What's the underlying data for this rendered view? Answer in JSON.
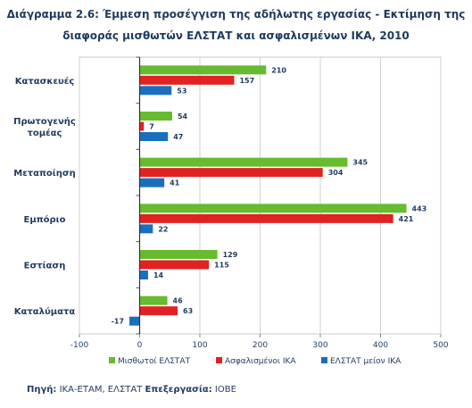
{
  "title_line1": "Διάγραμμα 2.6: Έμμεση προσέγγιση της αδήλωτης εργασίας - Εκτίμηση της",
  "title_line2": "διαφοράς μισθωτών ΕΛΣΤΑΤ και ασφαλισμένων ΙΚΑ, 2010",
  "source_label": "Πηγή:",
  "source_text": " ΙΚΑ-ΕΤΑΜ, ΕΛΣΤΑΤ ",
  "processing_label": "Επεξεργασία:",
  "processing_text": " ΙΟΒΕ",
  "colors": {
    "series1": "#66bb2e",
    "series2": "#e02222",
    "series3": "#1a6fbd",
    "text": "#1f3a5f"
  },
  "chart_data": {
    "type": "bar",
    "orientation": "horizontal",
    "categories": [
      "Κατασκευές",
      "Πρωτογενής τομέας",
      "Μεταποίηση",
      "Εμπόριο",
      "Εστίαση",
      "Καταλύματα"
    ],
    "category_lines": [
      [
        "Κατασκευές"
      ],
      [
        "Πρωτογενής",
        "τομέας"
      ],
      [
        "Μεταποίηση"
      ],
      [
        "Εμπόριο"
      ],
      [
        "Εστίαση"
      ],
      [
        "Καταλύματα"
      ]
    ],
    "series": [
      {
        "name": "Μισθωτοί ΕΛΣΤΑΤ",
        "values": [
          210,
          54,
          345,
          443,
          129,
          46
        ]
      },
      {
        "name": "Ασφαλισμένοι ΙΚΑ",
        "values": [
          157,
          7,
          304,
          421,
          115,
          63
        ]
      },
      {
        "name": "ΕΛΣΤΑΤ μείον ΙΚΑ",
        "values": [
          53,
          47,
          41,
          22,
          14,
          -17
        ]
      }
    ],
    "xlim": [
      -100,
      500
    ],
    "xticks": [
      -100,
      0,
      100,
      200,
      300,
      400,
      500
    ],
    "grid": true,
    "legend_position": "bottom"
  }
}
